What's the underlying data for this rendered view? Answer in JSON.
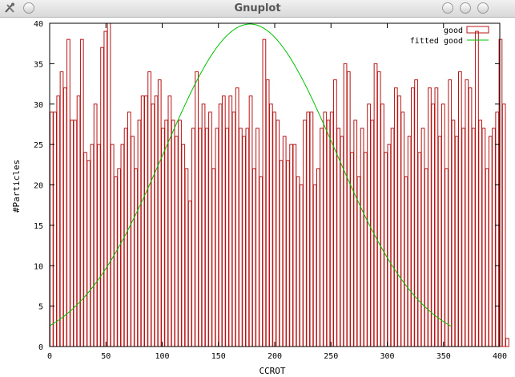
{
  "window": {
    "title": "Gnuplot"
  },
  "colors": {
    "bars": "#b81414",
    "fit": "#00c000",
    "axis": "#000000"
  },
  "icons": {
    "app": "tools-icon",
    "menu": "window-menu-icon",
    "minimize": "minimize-icon",
    "maximize": "maximize-icon",
    "close": "close-icon"
  },
  "chart_data": {
    "type": "bar",
    "xlabel": "CCROT",
    "ylabel": "#Particles",
    "xlim": [
      0,
      400
    ],
    "ylim": [
      0,
      40
    ],
    "xticks": [
      0,
      50,
      100,
      150,
      200,
      250,
      300,
      350,
      400
    ],
    "yticks": [
      0,
      5,
      10,
      15,
      20,
      25,
      30,
      35,
      40
    ],
    "bin_width": 3,
    "legend_position": "top-right",
    "series": [
      {
        "name": "good",
        "style": "boxes",
        "x_start": 0,
        "values": [
          29,
          29,
          31,
          34,
          32,
          38,
          28,
          28,
          31,
          38,
          24,
          23,
          25,
          30,
          25,
          37,
          39,
          40,
          25,
          21,
          22,
          25,
          27,
          29,
          26,
          22,
          28,
          31,
          31,
          34,
          30,
          31,
          33,
          27,
          28,
          31,
          28,
          26,
          28,
          25,
          22,
          18,
          27,
          34,
          27,
          30,
          27,
          29,
          22,
          27,
          30,
          31,
          27,
          31,
          29,
          32,
          27,
          26,
          27,
          31,
          22,
          27,
          21,
          38,
          33,
          30,
          29,
          28,
          23,
          26,
          23,
          25,
          25,
          21,
          20,
          28,
          29,
          29,
          20,
          22,
          27,
          29,
          28,
          29,
          33,
          27,
          26,
          35,
          34,
          24,
          28,
          21,
          27,
          24,
          30,
          28,
          35,
          34,
          30,
          24,
          25,
          27,
          32,
          31,
          29,
          21,
          26,
          32,
          33,
          24,
          27,
          22,
          32,
          30,
          32,
          26,
          30,
          22,
          33,
          28,
          26,
          34,
          27,
          33,
          32,
          27,
          39,
          28,
          27,
          22,
          26,
          27,
          29,
          38,
          30,
          1
        ]
      },
      {
        "name": "fitted good",
        "style": "lines",
        "function": "gaussian",
        "amplitude": 39.9,
        "center": 178,
        "sigma": 76,
        "x_range": [
          0,
          357
        ]
      }
    ]
  }
}
